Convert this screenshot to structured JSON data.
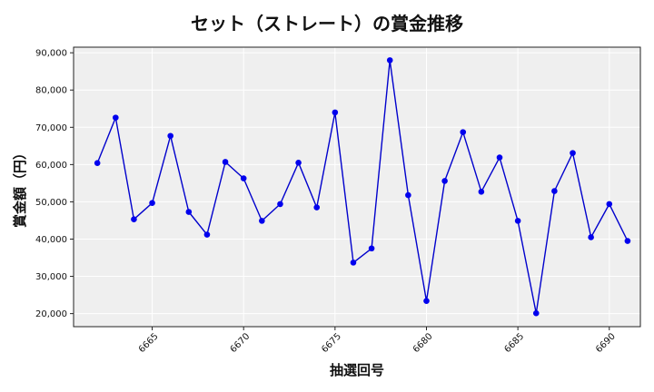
{
  "chart_data": {
    "type": "line",
    "title": "セット（ストレート）の賞金推移",
    "xlabel": "抽選回号",
    "ylabel": "賞金額（円）",
    "xlim": [
      6660.7,
      6691.7
    ],
    "ylim": [
      16500,
      91500
    ],
    "x_ticks": [
      6665,
      6670,
      6675,
      6680,
      6685,
      6690
    ],
    "y_ticks": [
      20000,
      30000,
      40000,
      50000,
      60000,
      70000,
      80000,
      90000
    ],
    "y_tick_labels": [
      "20,000",
      "30,000",
      "40,000",
      "50,000",
      "60,000",
      "70,000",
      "80,000",
      "90,000"
    ],
    "grid": true,
    "line_color": "#0000cc",
    "marker_color": "#0000ee",
    "plot_bg": "#efefef",
    "series": [
      {
        "x": [
          6662,
          6663,
          6664,
          6665,
          6666,
          6667,
          6668,
          6669,
          6670,
          6671,
          6672,
          6673,
          6674,
          6675,
          6676,
          6677,
          6678,
          6679,
          6680,
          6681,
          6682,
          6683,
          6684,
          6685,
          6686,
          6687,
          6688,
          6689,
          6690,
          6691
        ],
        "values": [
          60400,
          72600,
          45300,
          49700,
          67700,
          47300,
          41200,
          60700,
          56300,
          44900,
          49400,
          60500,
          48500,
          74000,
          33700,
          37500,
          88000,
          51800,
          23400,
          55600,
          68700,
          52700,
          61900,
          44900,
          20100,
          52900,
          63100,
          40500,
          49400,
          39500
        ]
      }
    ]
  }
}
